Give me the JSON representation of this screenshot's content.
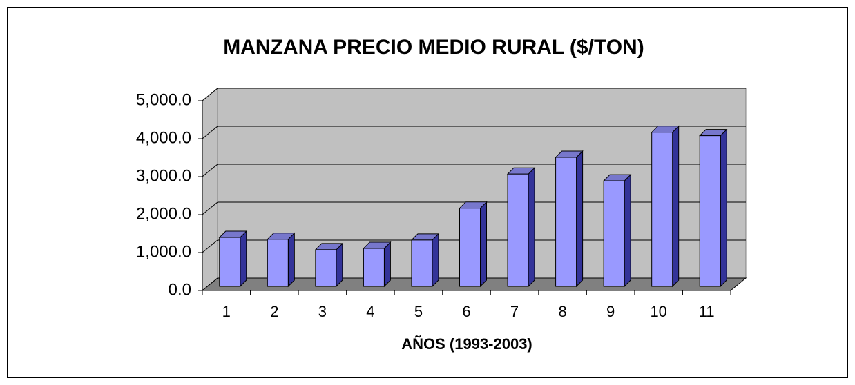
{
  "chart_data": {
    "type": "bar3d",
    "title": "MANZANA PRECIO MEDIO RURAL ($/TON)",
    "x_label": "AÑOS (1993-2003)",
    "categories": [
      "1",
      "2",
      "3",
      "4",
      "5",
      "6",
      "7",
      "8",
      "9",
      "10",
      "11"
    ],
    "values": [
      1290,
      1240,
      965,
      1000,
      1220,
      2060,
      2960,
      3400,
      2780,
      4060,
      3970
    ],
    "color": "#9999ff",
    "ylim": [
      0,
      5000
    ],
    "yticks": [
      {
        "value": 0,
        "label": "0.0"
      },
      {
        "value": 1000,
        "label": "1,000.0"
      },
      {
        "value": 2000,
        "label": "2,000.0"
      },
      {
        "value": 3000,
        "label": "3,000.0"
      },
      {
        "value": 4000,
        "label": "4,000.0"
      },
      {
        "value": 5000,
        "label": "5,000.0"
      }
    ],
    "grid": true
  }
}
